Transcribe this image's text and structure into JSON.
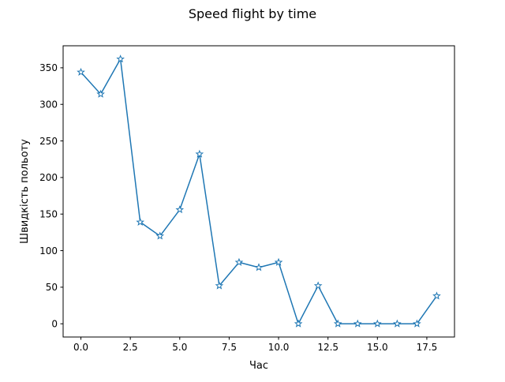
{
  "chart_data": {
    "type": "line",
    "title": "Speed flight by time",
    "xlabel": "Час",
    "ylabel": "Швидкість польоту",
    "x": [
      0,
      1,
      2,
      3,
      4,
      5,
      6,
      7,
      8,
      9,
      10,
      11,
      12,
      13,
      14,
      15,
      16,
      17,
      18
    ],
    "series": [
      {
        "values": [
          344,
          314,
          362,
          139,
          120,
          156,
          232,
          52,
          84,
          77,
          84,
          0,
          52,
          0,
          0,
          0,
          0,
          0,
          38
        ],
        "color": "#1f77b4",
        "marker": "star"
      }
    ],
    "xlim": [
      -0.9,
      18.9
    ],
    "ylim": [
      -18.1,
      380.1
    ],
    "xticks": [
      0.0,
      2.5,
      5.0,
      7.5,
      10.0,
      12.5,
      15.0,
      17.5
    ],
    "xtick_labels": [
      "0.0",
      "2.5",
      "5.0",
      "7.5",
      "10.0",
      "12.5",
      "15.0",
      "17.5"
    ],
    "yticks": [
      0,
      50,
      100,
      150,
      200,
      250,
      300,
      350
    ],
    "ytick_labels": [
      "0",
      "50",
      "100",
      "150",
      "200",
      "250",
      "300",
      "350"
    ],
    "grid": false,
    "legend": false
  }
}
